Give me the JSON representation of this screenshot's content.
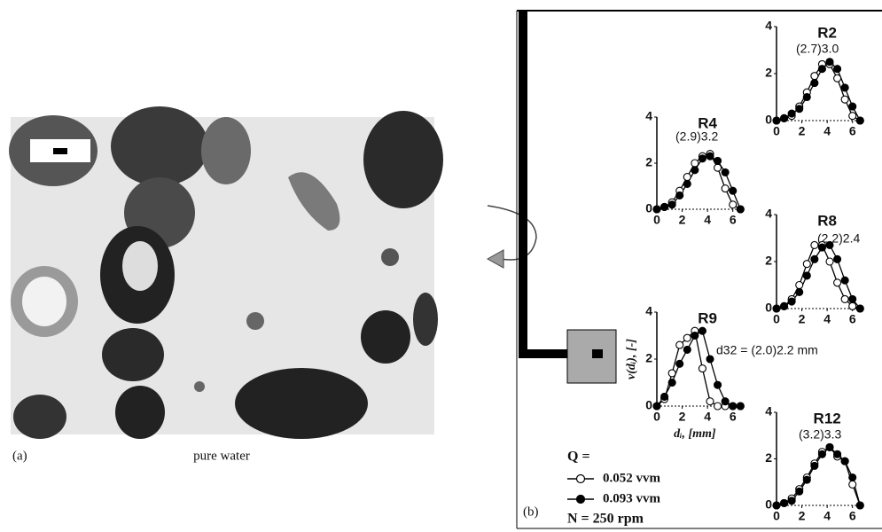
{
  "panel_a": {
    "label": "(a)",
    "caption": "pure water"
  },
  "panel_b": {
    "label": "(b)",
    "conditions": "N = 250 rpm"
  },
  "legend": {
    "title": "Q =",
    "entries": [
      {
        "name": "0.052 vvm",
        "marker": "open"
      },
      {
        "name": "0.093 vvm",
        "marker": "filled"
      }
    ]
  },
  "chart_data": [
    {
      "type": "line",
      "title": "R2",
      "annotation": "(2.7)3.0",
      "x": [
        0,
        0.6,
        1.2,
        1.8,
        2.4,
        3,
        3.6,
        4.2,
        4.8,
        5.4,
        6,
        6.6
      ],
      "series": [
        {
          "marker": "open",
          "values": [
            0,
            0.1,
            0.2,
            0.6,
            1.2,
            1.9,
            2.4,
            2.4,
            1.8,
            0.9,
            0.2,
            0
          ]
        },
        {
          "marker": "filled",
          "values": [
            0,
            0.1,
            0.3,
            0.5,
            1.0,
            1.6,
            2.2,
            2.5,
            2.2,
            1.4,
            0.6,
            0
          ]
        }
      ],
      "xlim": [
        0,
        7
      ],
      "xticks": [
        0,
        2,
        4,
        6
      ],
      "ylim": [
        0,
        4
      ],
      "yticks": [
        0,
        2,
        4
      ]
    },
    {
      "type": "line",
      "title": "R4",
      "annotation": "(2.9)3.2",
      "x": [
        0,
        0.6,
        1.2,
        1.8,
        2.4,
        3,
        3.6,
        4.2,
        4.8,
        5.4,
        6,
        6.6
      ],
      "series": [
        {
          "marker": "open",
          "values": [
            0,
            0.1,
            0.3,
            0.8,
            1.4,
            2.0,
            2.3,
            2.4,
            1.8,
            0.9,
            0.2,
            0
          ]
        },
        {
          "marker": "filled",
          "values": [
            0,
            0.1,
            0.2,
            0.6,
            1.1,
            1.7,
            2.2,
            2.3,
            2.1,
            1.6,
            0.8,
            0
          ]
        }
      ],
      "xlim": [
        0,
        7
      ],
      "xticks": [
        0,
        2,
        4,
        6
      ],
      "ylim": [
        0,
        4
      ],
      "yticks": [
        0,
        2,
        4
      ]
    },
    {
      "type": "line",
      "title": "R8",
      "annotation": "(2.2)2.4",
      "x": [
        0,
        0.6,
        1.2,
        1.8,
        2.4,
        3,
        3.6,
        4.2,
        4.8,
        5.4,
        6,
        6.6
      ],
      "series": [
        {
          "marker": "open",
          "values": [
            0,
            0.1,
            0.4,
            1.0,
            1.9,
            2.7,
            2.7,
            2.0,
            1.1,
            0.4,
            0.1,
            0
          ]
        },
        {
          "marker": "filled",
          "values": [
            0,
            0.1,
            0.3,
            0.7,
            1.4,
            2.1,
            2.6,
            2.7,
            2.1,
            1.2,
            0.4,
            0
          ]
        }
      ],
      "xlim": [
        0,
        7
      ],
      "xticks": [
        0,
        2,
        4,
        6
      ],
      "ylim": [
        0,
        4
      ],
      "yticks": [
        0,
        2,
        4
      ]
    },
    {
      "type": "line",
      "title": "R9",
      "annotation": "d32 = (2.0)2.2 mm",
      "xlabel": "dᵢ, [mm]",
      "ylabel": "v(dᵢ), [-]",
      "x": [
        0,
        0.6,
        1.2,
        1.8,
        2.4,
        3,
        3.6,
        4.2,
        4.8,
        5.4,
        6,
        6.6
      ],
      "series": [
        {
          "marker": "open",
          "values": [
            0,
            0.3,
            1.4,
            2.6,
            2.9,
            3.2,
            1.6,
            0.2,
            0,
            0,
            0,
            0
          ]
        },
        {
          "marker": "filled",
          "values": [
            0,
            0.4,
            1.0,
            1.8,
            2.4,
            3.0,
            3.2,
            2.0,
            0.9,
            0.2,
            0,
            0
          ]
        }
      ],
      "xlim": [
        0,
        7
      ],
      "xticks": [
        0,
        2,
        4,
        6
      ],
      "ylim": [
        0,
        4
      ],
      "yticks": [
        0,
        2,
        4
      ]
    },
    {
      "type": "line",
      "title": "R12",
      "annotation": "(3.2)3.3",
      "x": [
        0,
        0.6,
        1.2,
        1.8,
        2.4,
        3,
        3.6,
        4.2,
        4.8,
        5.4,
        6,
        6.6
      ],
      "series": [
        {
          "marker": "open",
          "values": [
            0,
            0.1,
            0.3,
            0.7,
            1.2,
            1.8,
            2.3,
            2.5,
            2.1,
            1.9,
            0.9,
            0
          ]
        },
        {
          "marker": "filled",
          "values": [
            0,
            0.1,
            0.2,
            0.6,
            1.1,
            1.7,
            2.2,
            2.5,
            2.2,
            1.9,
            1.2,
            0
          ]
        }
      ],
      "xlim": [
        0,
        7
      ],
      "xticks": [
        0,
        2,
        4,
        6
      ],
      "ylim": [
        0,
        4
      ],
      "yticks": [
        0,
        2,
        4
      ]
    }
  ]
}
